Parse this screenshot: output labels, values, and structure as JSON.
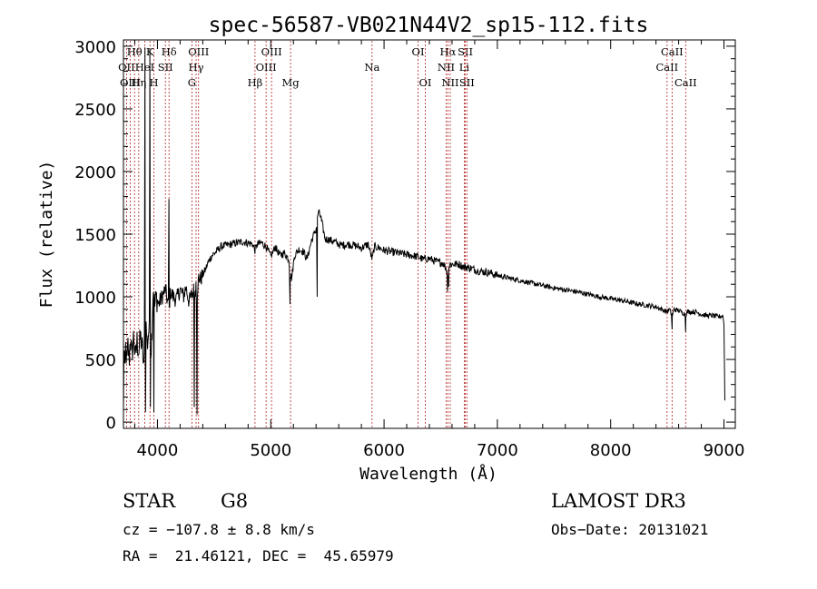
{
  "chart_data": {
    "type": "line",
    "title": "spec-56587-VB021N44V2_sp15-112.fits",
    "xlabel": "Wavelength (Å)",
    "ylabel": "Flux (relative)",
    "xlim": [
      3700,
      9100
    ],
    "ylim": [
      -50,
      3050
    ],
    "xticks": [
      4000,
      5000,
      6000,
      7000,
      8000,
      9000
    ],
    "yticks": [
      0,
      500,
      1000,
      1500,
      2000,
      2500,
      3000
    ],
    "anchors": [
      [
        3700,
        80
      ],
      [
        3705,
        680
      ],
      [
        3712,
        360
      ],
      [
        3720,
        600
      ],
      [
        3730,
        450
      ],
      [
        3740,
        620
      ],
      [
        3750,
        480
      ],
      [
        3760,
        680
      ],
      [
        3775,
        520
      ],
      [
        3790,
        700
      ],
      [
        3805,
        500
      ],
      [
        3820,
        650
      ],
      [
        3835,
        560
      ],
      [
        3850,
        680
      ],
      [
        3870,
        560
      ],
      [
        3880,
        400
      ],
      [
        3890,
        700
      ],
      [
        3900,
        760
      ],
      [
        3910,
        620
      ],
      [
        3925,
        750
      ],
      [
        3940,
        560
      ],
      [
        3950,
        700
      ],
      [
        3962,
        1080
      ],
      [
        3975,
        920
      ],
      [
        3990,
        1000
      ],
      [
        4010,
        940
      ],
      [
        4040,
        1000
      ],
      [
        4070,
        1060
      ],
      [
        4090,
        960
      ],
      [
        4101,
        900
      ],
      [
        4115,
        1040
      ],
      [
        4140,
        1000
      ],
      [
        4170,
        980
      ],
      [
        4200,
        1060
      ],
      [
        4230,
        1000
      ],
      [
        4250,
        1080
      ],
      [
        4280,
        960
      ],
      [
        4305,
        1020
      ],
      [
        4325,
        1060
      ],
      [
        4345,
        980
      ],
      [
        4365,
        1160
      ],
      [
        4380,
        1140
      ],
      [
        4400,
        1180
      ],
      [
        4420,
        1210
      ],
      [
        4450,
        1280
      ],
      [
        4480,
        1330
      ],
      [
        4520,
        1360
      ],
      [
        4560,
        1400
      ],
      [
        4600,
        1410
      ],
      [
        4650,
        1420
      ],
      [
        4700,
        1430
      ],
      [
        4750,
        1440
      ],
      [
        4800,
        1430
      ],
      [
        4840,
        1420
      ],
      [
        4861,
        1370
      ],
      [
        4880,
        1420
      ],
      [
        4920,
        1430
      ],
      [
        4960,
        1400
      ],
      [
        5000,
        1320
      ],
      [
        5040,
        1400
      ],
      [
        5080,
        1330
      ],
      [
        5120,
        1350
      ],
      [
        5160,
        1300
      ],
      [
        5172,
        1180
      ],
      [
        5185,
        1150
      ],
      [
        5210,
        1330
      ],
      [
        5250,
        1380
      ],
      [
        5290,
        1360
      ],
      [
        5320,
        1300
      ],
      [
        5360,
        1450
      ],
      [
        5400,
        1540
      ],
      [
        5420,
        1680
      ],
      [
        5440,
        1640
      ],
      [
        5460,
        1550
      ],
      [
        5480,
        1460
      ],
      [
        5500,
        1460
      ],
      [
        5560,
        1440
      ],
      [
        5620,
        1410
      ],
      [
        5680,
        1420
      ],
      [
        5740,
        1410
      ],
      [
        5800,
        1390
      ],
      [
        5860,
        1420
      ],
      [
        5880,
        1350
      ],
      [
        5896,
        1300
      ],
      [
        5915,
        1400
      ],
      [
        5960,
        1390
      ],
      [
        6000,
        1370
      ],
      [
        6060,
        1360
      ],
      [
        6120,
        1350
      ],
      [
        6180,
        1340
      ],
      [
        6240,
        1330
      ],
      [
        6300,
        1320
      ],
      [
        6340,
        1300
      ],
      [
        6400,
        1305
      ],
      [
        6460,
        1280
      ],
      [
        6520,
        1270
      ],
      [
        6563,
        1200
      ],
      [
        6580,
        1260
      ],
      [
        6620,
        1260
      ],
      [
        6660,
        1260
      ],
      [
        6700,
        1240
      ],
      [
        6760,
        1230
      ],
      [
        6820,
        1210
      ],
      [
        6880,
        1200
      ],
      [
        6940,
        1190
      ],
      [
        7000,
        1170
      ],
      [
        7100,
        1150
      ],
      [
        7200,
        1130
      ],
      [
        7300,
        1110
      ],
      [
        7400,
        1090
      ],
      [
        7500,
        1070
      ],
      [
        7600,
        1055
      ],
      [
        7700,
        1040
      ],
      [
        7800,
        1020
      ],
      [
        7900,
        1000
      ],
      [
        8000,
        985
      ],
      [
        8100,
        970
      ],
      [
        8200,
        950
      ],
      [
        8300,
        935
      ],
      [
        8400,
        920
      ],
      [
        8498,
        880
      ],
      [
        8520,
        900
      ],
      [
        8542,
        850
      ],
      [
        8560,
        900
      ],
      [
        8600,
        890
      ],
      [
        8662,
        860
      ],
      [
        8680,
        880
      ],
      [
        8750,
        880
      ],
      [
        8800,
        860
      ],
      [
        8850,
        850
      ],
      [
        8900,
        850
      ],
      [
        8950,
        840
      ],
      [
        8990,
        850
      ],
      [
        9000,
        780
      ],
      [
        9010,
        20
      ]
    ],
    "spikes": [
      [
        3890,
        2990
      ],
      [
        3895,
        80
      ],
      [
        3933,
        2980
      ],
      [
        3938,
        120
      ],
      [
        3968,
        80
      ],
      [
        4101,
        1780
      ],
      [
        4104,
        920
      ],
      [
        4325,
        120
      ],
      [
        4340,
        1120
      ],
      [
        4350,
        60
      ],
      [
        4357,
        1060
      ],
      [
        5170,
        940
      ],
      [
        5410,
        1000
      ],
      [
        6560,
        1040
      ],
      [
        6570,
        1080
      ],
      [
        8542,
        740
      ],
      [
        8662,
        720
      ]
    ],
    "spectral_lines": [
      {
        "label": "Hθ",
        "wave": 3798,
        "row": 1
      },
      {
        "label": "OII",
        "wave": 3727,
        "row": 2
      },
      {
        "label": "OIII",
        "wave": 3760,
        "row": 3
      },
      {
        "label": "Hη",
        "wave": 3835,
        "row": 3
      },
      {
        "label": "HeI",
        "wave": 3888,
        "row": 2
      },
      {
        "label": "K",
        "wave": 3934,
        "row": 1
      },
      {
        "label": "SII",
        "wave": 4070,
        "row": 2
      },
      {
        "label": "H",
        "wave": 3969,
        "row": 3
      },
      {
        "label": "Hδ",
        "wave": 4102,
        "row": 1
      },
      {
        "label": "OIII",
        "wave": 4363,
        "row": 1
      },
      {
        "label": "Hγ",
        "wave": 4341,
        "row": 2
      },
      {
        "label": "G",
        "wave": 4304,
        "row": 3
      },
      {
        "label": "OIII",
        "wave": 5007,
        "row": 1
      },
      {
        "label": "OIII",
        "wave": 4959,
        "row": 2
      },
      {
        "label": "Hβ",
        "wave": 4861,
        "row": 3
      },
      {
        "label": "Mg",
        "wave": 5175,
        "row": 3
      },
      {
        "label": "Na",
        "wave": 5894,
        "row": 2
      },
      {
        "label": "OI",
        "wave": 6300,
        "row": 1
      },
      {
        "label": "OI",
        "wave": 6364,
        "row": 3
      },
      {
        "label": "Hα",
        "wave": 6563,
        "row": 1
      },
      {
        "label": "NII",
        "wave": 6548,
        "row": 2
      },
      {
        "label": "NII",
        "wave": 6584,
        "row": 3
      },
      {
        "label": "SII",
        "wave": 6717,
        "row": 1
      },
      {
        "label": "Li",
        "wave": 6708,
        "row": 2
      },
      {
        "label": "SII",
        "wave": 6731,
        "row": 3
      },
      {
        "label": "CaII",
        "wave": 8542,
        "row": 1
      },
      {
        "label": "CaII",
        "wave": 8498,
        "row": 2
      },
      {
        "label": "CaII",
        "wave": 8662,
        "row": 3
      }
    ],
    "colors": {
      "spectrum": "#000000",
      "lines": "#b22222",
      "axes": "#000000"
    }
  },
  "info": {
    "object_class": "STAR",
    "subclass": "G8",
    "survey": "LAMOST DR3",
    "redshift": "cz = −107.8 ± 8.8 km/s",
    "obs_date": "Obs−Date: 20131021",
    "coords": "RA =  21.46121, DEC =  45.65979"
  }
}
